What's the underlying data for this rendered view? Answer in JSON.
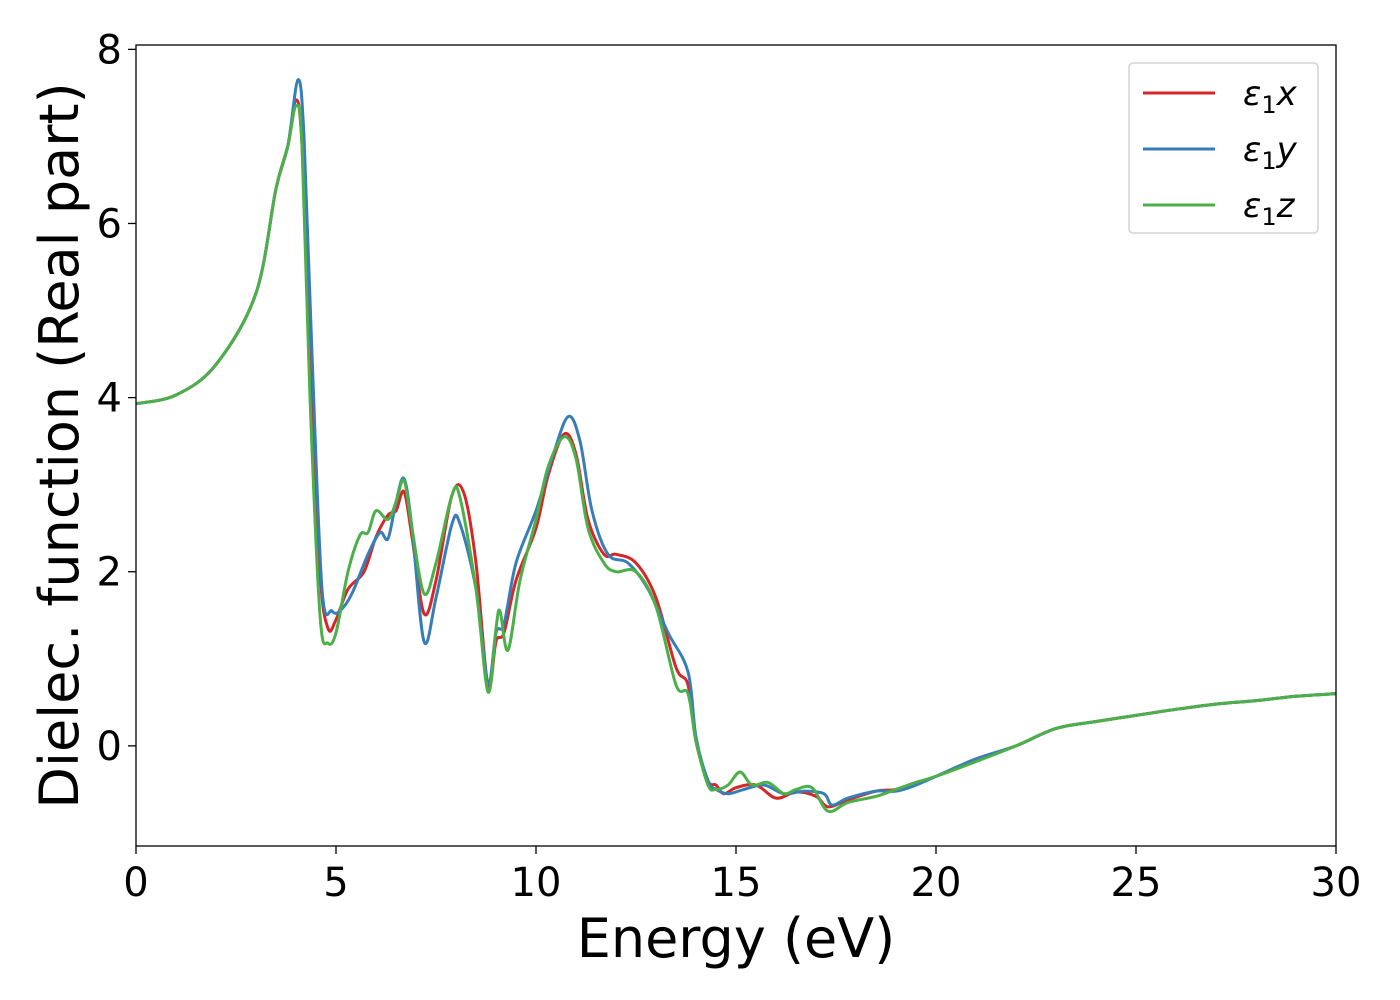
{
  "chart_data": {
    "type": "line",
    "title": "",
    "xlabel": "Energy (eV)",
    "ylabel": "Dielec. function (Real part)",
    "xlim": [
      0,
      30
    ],
    "ylim": [
      -1.15,
      8.05
    ],
    "xticks": [
      0,
      5,
      10,
      15,
      20,
      25,
      30
    ],
    "xtick_labels": [
      "0",
      "5",
      "10",
      "15",
      "20",
      "25",
      "30"
    ],
    "yticks": [
      0,
      2,
      4,
      6,
      8
    ],
    "ytick_labels": [
      "0",
      "2",
      "4",
      "6",
      "8"
    ],
    "grid": false,
    "legend_position": "top-right",
    "series": [
      {
        "name": "ε₁x",
        "legend_main": "ε",
        "legend_sub": "1",
        "legend_var": "x",
        "color": "#d62728",
        "points": [
          [
            0,
            3.93
          ],
          [
            1,
            4.03
          ],
          [
            2,
            4.38
          ],
          [
            3,
            5.2
          ],
          [
            3.5,
            6.4
          ],
          [
            3.8,
            6.9
          ],
          [
            4.0,
            7.42
          ],
          [
            4.15,
            6.9
          ],
          [
            4.35,
            4.5
          ],
          [
            4.6,
            2.0
          ],
          [
            4.8,
            1.35
          ],
          [
            5.0,
            1.45
          ],
          [
            5.3,
            1.8
          ],
          [
            5.7,
            2.0
          ],
          [
            6.0,
            2.4
          ],
          [
            6.3,
            2.65
          ],
          [
            6.5,
            2.7
          ],
          [
            6.7,
            2.92
          ],
          [
            6.9,
            2.4
          ],
          [
            7.2,
            1.52
          ],
          [
            7.5,
            1.9
          ],
          [
            7.9,
            2.88
          ],
          [
            8.2,
            2.9
          ],
          [
            8.5,
            2.1
          ],
          [
            8.8,
            0.68
          ],
          [
            9.0,
            1.2
          ],
          [
            9.2,
            1.3
          ],
          [
            9.5,
            1.9
          ],
          [
            10.0,
            2.5
          ],
          [
            10.3,
            3.1
          ],
          [
            10.7,
            3.58
          ],
          [
            11.0,
            3.35
          ],
          [
            11.3,
            2.6
          ],
          [
            11.7,
            2.2
          ],
          [
            12.0,
            2.2
          ],
          [
            12.5,
            2.1
          ],
          [
            13.0,
            1.7
          ],
          [
            13.5,
            0.9
          ],
          [
            13.8,
            0.7
          ],
          [
            14.0,
            0.05
          ],
          [
            14.3,
            -0.4
          ],
          [
            14.5,
            -0.45
          ],
          [
            14.7,
            -0.55
          ],
          [
            15.0,
            -0.48
          ],
          [
            15.5,
            -0.45
          ],
          [
            16.0,
            -0.6
          ],
          [
            16.5,
            -0.53
          ],
          [
            17.0,
            -0.58
          ],
          [
            17.3,
            -0.7
          ],
          [
            17.8,
            -0.62
          ],
          [
            18.5,
            -0.52
          ],
          [
            19.0,
            -0.5
          ],
          [
            19.5,
            -0.42
          ],
          [
            20.0,
            -0.35
          ],
          [
            21.0,
            -0.15
          ],
          [
            22.0,
            0.0
          ],
          [
            23.0,
            0.2
          ],
          [
            24.0,
            0.28
          ],
          [
            25.0,
            0.35
          ],
          [
            26.0,
            0.42
          ],
          [
            27.0,
            0.48
          ],
          [
            28.0,
            0.52
          ],
          [
            29.0,
            0.57
          ],
          [
            30.0,
            0.6
          ]
        ]
      },
      {
        "name": "ε₁y",
        "legend_main": "ε",
        "legend_sub": "1",
        "legend_var": "y",
        "color": "#377eb8",
        "points": [
          [
            0,
            3.93
          ],
          [
            1,
            4.03
          ],
          [
            2,
            4.38
          ],
          [
            3,
            5.2
          ],
          [
            3.5,
            6.4
          ],
          [
            3.8,
            6.9
          ],
          [
            4.05,
            7.65
          ],
          [
            4.2,
            7.0
          ],
          [
            4.4,
            4.5
          ],
          [
            4.65,
            1.8
          ],
          [
            4.9,
            1.55
          ],
          [
            5.1,
            1.55
          ],
          [
            5.4,
            1.75
          ],
          [
            5.8,
            2.2
          ],
          [
            6.1,
            2.45
          ],
          [
            6.3,
            2.38
          ],
          [
            6.5,
            2.8
          ],
          [
            6.7,
            3.07
          ],
          [
            6.9,
            2.5
          ],
          [
            7.2,
            1.2
          ],
          [
            7.5,
            1.7
          ],
          [
            7.9,
            2.55
          ],
          [
            8.1,
            2.55
          ],
          [
            8.5,
            1.8
          ],
          [
            8.8,
            0.72
          ],
          [
            9.0,
            1.3
          ],
          [
            9.2,
            1.4
          ],
          [
            9.5,
            2.1
          ],
          [
            10.0,
            2.7
          ],
          [
            10.4,
            3.3
          ],
          [
            10.8,
            3.78
          ],
          [
            11.1,
            3.5
          ],
          [
            11.4,
            2.7
          ],
          [
            11.8,
            2.2
          ],
          [
            12.3,
            2.1
          ],
          [
            12.8,
            1.8
          ],
          [
            13.3,
            1.3
          ],
          [
            13.8,
            0.85
          ],
          [
            14.0,
            0.1
          ],
          [
            14.3,
            -0.4
          ],
          [
            14.5,
            -0.5
          ],
          [
            14.8,
            -0.55
          ],
          [
            15.2,
            -0.5
          ],
          [
            15.7,
            -0.45
          ],
          [
            16.2,
            -0.55
          ],
          [
            16.7,
            -0.52
          ],
          [
            17.2,
            -0.55
          ],
          [
            17.4,
            -0.68
          ],
          [
            17.8,
            -0.6
          ],
          [
            18.5,
            -0.52
          ],
          [
            19.0,
            -0.52
          ],
          [
            19.5,
            -0.45
          ],
          [
            20.0,
            -0.35
          ],
          [
            21.0,
            -0.15
          ],
          [
            22.0,
            0.0
          ],
          [
            23.0,
            0.2
          ],
          [
            24.0,
            0.28
          ],
          [
            25.0,
            0.35
          ],
          [
            26.0,
            0.42
          ],
          [
            27.0,
            0.48
          ],
          [
            28.0,
            0.52
          ],
          [
            29.0,
            0.57
          ],
          [
            30.0,
            0.6
          ]
        ]
      },
      {
        "name": "ε₁z",
        "legend_main": "ε",
        "legend_sub": "1",
        "legend_var": "z",
        "color": "#4daf4a",
        "points": [
          [
            0,
            3.93
          ],
          [
            1,
            4.03
          ],
          [
            2,
            4.38
          ],
          [
            3,
            5.2
          ],
          [
            3.5,
            6.4
          ],
          [
            3.8,
            6.9
          ],
          [
            4.0,
            7.35
          ],
          [
            4.15,
            6.9
          ],
          [
            4.35,
            4.0
          ],
          [
            4.6,
            1.5
          ],
          [
            4.8,
            1.18
          ],
          [
            5.0,
            1.3
          ],
          [
            5.3,
            2.0
          ],
          [
            5.6,
            2.42
          ],
          [
            5.8,
            2.45
          ],
          [
            6.0,
            2.7
          ],
          [
            6.3,
            2.6
          ],
          [
            6.5,
            2.8
          ],
          [
            6.7,
            3.05
          ],
          [
            6.9,
            2.5
          ],
          [
            7.2,
            1.75
          ],
          [
            7.5,
            2.1
          ],
          [
            7.9,
            2.88
          ],
          [
            8.1,
            2.85
          ],
          [
            8.5,
            1.8
          ],
          [
            8.8,
            0.62
          ],
          [
            9.0,
            1.35
          ],
          [
            9.1,
            1.55
          ],
          [
            9.3,
            1.1
          ],
          [
            9.6,
            1.9
          ],
          [
            10.0,
            2.6
          ],
          [
            10.3,
            3.2
          ],
          [
            10.7,
            3.55
          ],
          [
            11.0,
            3.3
          ],
          [
            11.3,
            2.5
          ],
          [
            11.7,
            2.1
          ],
          [
            12.0,
            2.0
          ],
          [
            12.5,
            2.0
          ],
          [
            13.0,
            1.6
          ],
          [
            13.5,
            0.7
          ],
          [
            13.8,
            0.6
          ],
          [
            14.0,
            0.05
          ],
          [
            14.3,
            -0.45
          ],
          [
            14.5,
            -0.5
          ],
          [
            14.8,
            -0.45
          ],
          [
            15.1,
            -0.3
          ],
          [
            15.4,
            -0.45
          ],
          [
            15.8,
            -0.42
          ],
          [
            16.2,
            -0.55
          ],
          [
            16.5,
            -0.5
          ],
          [
            16.9,
            -0.48
          ],
          [
            17.3,
            -0.75
          ],
          [
            17.8,
            -0.65
          ],
          [
            18.5,
            -0.58
          ],
          [
            19.0,
            -0.5
          ],
          [
            19.5,
            -0.42
          ],
          [
            20.0,
            -0.35
          ],
          [
            21.0,
            -0.18
          ],
          [
            22.0,
            0.0
          ],
          [
            23.0,
            0.2
          ],
          [
            24.0,
            0.28
          ],
          [
            25.0,
            0.35
          ],
          [
            26.0,
            0.42
          ],
          [
            27.0,
            0.48
          ],
          [
            28.0,
            0.52
          ],
          [
            29.0,
            0.57
          ],
          [
            30.0,
            0.6
          ]
        ]
      }
    ]
  }
}
